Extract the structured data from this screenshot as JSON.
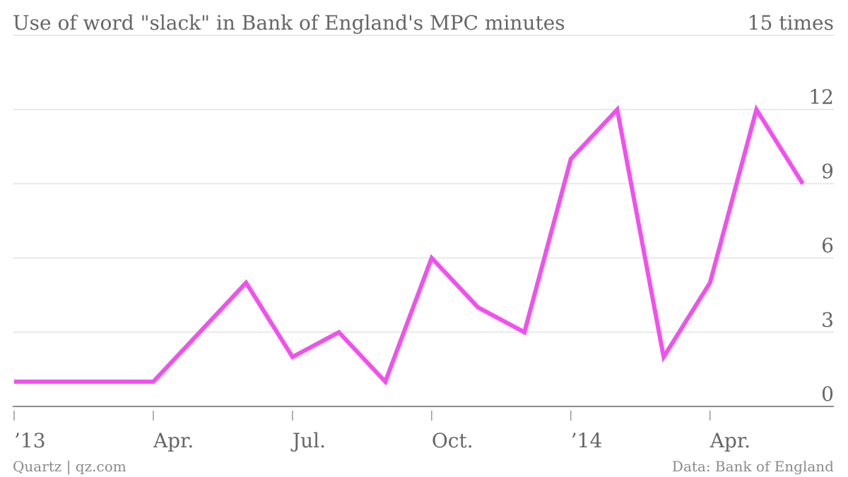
{
  "chart_data": {
    "type": "line",
    "title": "Use of word \"slack\" in Bank of England's MPC minutes",
    "y_top_label": "15 times",
    "x": [
      "2013-01",
      "2013-02",
      "2013-03",
      "2013-04",
      "2013-05",
      "2013-06",
      "2013-07",
      "2013-08",
      "2013-09",
      "2013-10",
      "2013-11",
      "2013-12",
      "2014-01",
      "2014-02",
      "2014-03",
      "2014-04",
      "2014-05",
      "2014-06"
    ],
    "series": [
      {
        "values": [
          1,
          1,
          1,
          1,
          3,
          5,
          2,
          3,
          1,
          6,
          4,
          3,
          10,
          12,
          2,
          5,
          12,
          9
        ],
        "color": "#f24ff0"
      }
    ],
    "ylim": [
      0,
      15
    ],
    "yticks": [
      0,
      3,
      6,
      9,
      12,
      15
    ],
    "ytick_labels": [
      "0",
      "3",
      "6",
      "9",
      "12"
    ],
    "xticks": [
      "2013-01",
      "2013-04",
      "2013-07",
      "2013-10",
      "2014-01",
      "2014-04"
    ],
    "xtick_labels": [
      "’13",
      "Apr.",
      "Jul.",
      "Oct.",
      "’14",
      "Apr."
    ],
    "grid": true
  },
  "footer": {
    "source_left": "Quartz | qz.com",
    "source_right": "Data: Bank of England"
  },
  "colors": {
    "line": "#f24ff0",
    "text": "#666666",
    "grid": "#e3e3e3"
  }
}
